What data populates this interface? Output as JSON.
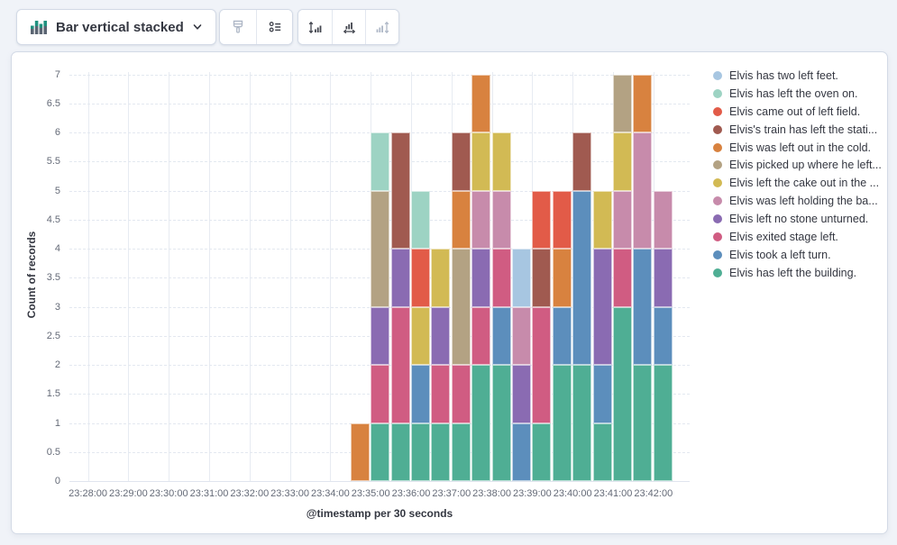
{
  "toolbar": {
    "chart_switch": {
      "label": "Bar vertical stacked"
    },
    "icons": {
      "chart_switch": "bar-vertical-stacked-icon",
      "chevron": "chevron-down-icon",
      "visual_options": "brush-icon",
      "legend_settings": "list-icon",
      "left_axis": "axis-left-icon",
      "bottom_axis": "axis-bottom-icon",
      "right_axis": "axis-right-icon"
    },
    "buttons": [
      {
        "name": "visual-options",
        "disabled": true
      },
      {
        "name": "legend-settings",
        "disabled": false
      },
      {
        "name": "left-axis",
        "disabled": false
      },
      {
        "name": "bottom-axis",
        "disabled": false
      },
      {
        "name": "right-axis",
        "disabled": true
      }
    ]
  },
  "ui_colors": {
    "page_bg": "#F0F3F8",
    "panel_border": "#D3DAE6",
    "grid": "#E3E8F0",
    "tick_text": "#646A77",
    "title_text": "#343741",
    "switch_icon_green": "#209280",
    "switch_icon_gray": "#5A6472"
  },
  "chart_data": {
    "type": "bar",
    "stacked": true,
    "title": "",
    "xlabel": "@timestamp per 30 seconds",
    "ylabel": "Count of records",
    "ylim": [
      0,
      7
    ],
    "y_tick_step": 0.5,
    "grid": true,
    "legend_position": "right",
    "x_minute_labels": [
      "23:28:00",
      "23:29:00",
      "23:30:00",
      "23:31:00",
      "23:32:00",
      "23:33:00",
      "23:34:00",
      "23:35:00",
      "23:36:00",
      "23:37:00",
      "23:38:00",
      "23:39:00",
      "23:40:00",
      "23:41:00",
      "23:42:00"
    ],
    "buckets": [
      "23:34:30",
      "23:35:00",
      "23:35:30",
      "23:36:00",
      "23:36:30",
      "23:37:00",
      "23:37:30",
      "23:38:00",
      "23:38:30",
      "23:39:00",
      "23:39:30",
      "23:40:00",
      "23:40:30",
      "23:41:00",
      "23:41:30",
      "23:42:00"
    ],
    "series": [
      {
        "name": "Elvis has left the building.",
        "color": "#4FAE94",
        "values": [
          0,
          1,
          1,
          1,
          1,
          1,
          2,
          2,
          0,
          1,
          2,
          2,
          1,
          3,
          2,
          2
        ]
      },
      {
        "name": "Elvis took a left turn.",
        "color": "#5C8EBC",
        "values": [
          0,
          0,
          0,
          1,
          0,
          0,
          0,
          1,
          1,
          0,
          1,
          3,
          1,
          0,
          2,
          1
        ]
      },
      {
        "name": "Elvis exited stage left.",
        "color": "#D05C82",
        "values": [
          0,
          1,
          2,
          0,
          1,
          1,
          1,
          1,
          0,
          2,
          0,
          0,
          0,
          1,
          0,
          0
        ]
      },
      {
        "name": "Elvis left no stone unturned.",
        "color": "#8A6BB2",
        "values": [
          0,
          1,
          1,
          0,
          1,
          0,
          1,
          0,
          1,
          0,
          0,
          0,
          2,
          0,
          0,
          1
        ]
      },
      {
        "name": "Elvis was left holding the ba...",
        "color": "#C78BAB",
        "values": [
          0,
          0,
          0,
          0,
          0,
          0,
          1,
          1,
          1,
          0,
          0,
          0,
          0,
          1,
          2,
          1
        ]
      },
      {
        "name": "Elvis left the cake out in the ...",
        "color": "#D2BA54",
        "values": [
          0,
          0,
          0,
          1,
          1,
          0,
          1,
          1,
          0,
          0,
          0,
          0,
          1,
          1,
          0,
          0
        ]
      },
      {
        "name": "Elvis picked up where he left...",
        "color": "#B3A283",
        "values": [
          0,
          2,
          0,
          0,
          0,
          2,
          0,
          0,
          0,
          0,
          0,
          0,
          0,
          1,
          0,
          0
        ]
      },
      {
        "name": "Elvis was left out in the cold.",
        "color": "#D8823F",
        "values": [
          1,
          0,
          0,
          0,
          0,
          1,
          1,
          0,
          0,
          0,
          1,
          0,
          0,
          0,
          1,
          0
        ]
      },
      {
        "name": "Elvis's train has left the stati...",
        "color": "#A05A50",
        "values": [
          0,
          0,
          2,
          0,
          0,
          1,
          0,
          0,
          0,
          1,
          0,
          1,
          0,
          0,
          0,
          0
        ]
      },
      {
        "name": "Elvis came out of left field.",
        "color": "#E25B48",
        "values": [
          0,
          0,
          0,
          1,
          0,
          0,
          0,
          0,
          0,
          1,
          1,
          0,
          0,
          0,
          0,
          0
        ]
      },
      {
        "name": "Elvis has left the oven on.",
        "color": "#9DD3C3",
        "values": [
          0,
          1,
          0,
          1,
          0,
          0,
          0,
          0,
          0,
          0,
          0,
          0,
          0,
          0,
          0,
          0
        ]
      },
      {
        "name": "Elvis has two left feet.",
        "color": "#A7C6E1",
        "values": [
          0,
          0,
          0,
          0,
          0,
          0,
          0,
          0,
          1,
          0,
          0,
          0,
          0,
          0,
          0,
          0
        ]
      }
    ]
  },
  "legend": {
    "items": [
      {
        "label": "Elvis has two left feet.",
        "color": "#A7C6E1"
      },
      {
        "label": "Elvis has left the oven on.",
        "color": "#9DD3C3"
      },
      {
        "label": "Elvis came out of left field.",
        "color": "#E25B48"
      },
      {
        "label": "Elvis's train has left the stati...",
        "color": "#A05A50"
      },
      {
        "label": "Elvis was left out in the cold.",
        "color": "#D8823F"
      },
      {
        "label": "Elvis picked up where he left...",
        "color": "#B3A283"
      },
      {
        "label": "Elvis left the cake out in the ...",
        "color": "#D2BA54"
      },
      {
        "label": "Elvis was left holding the ba...",
        "color": "#C78BAB"
      },
      {
        "label": "Elvis left no stone unturned.",
        "color": "#8A6BB2"
      },
      {
        "label": "Elvis exited stage left.",
        "color": "#D05C82"
      },
      {
        "label": "Elvis took a left turn.",
        "color": "#5C8EBC"
      },
      {
        "label": "Elvis has left the building.",
        "color": "#4FAE94"
      }
    ]
  }
}
